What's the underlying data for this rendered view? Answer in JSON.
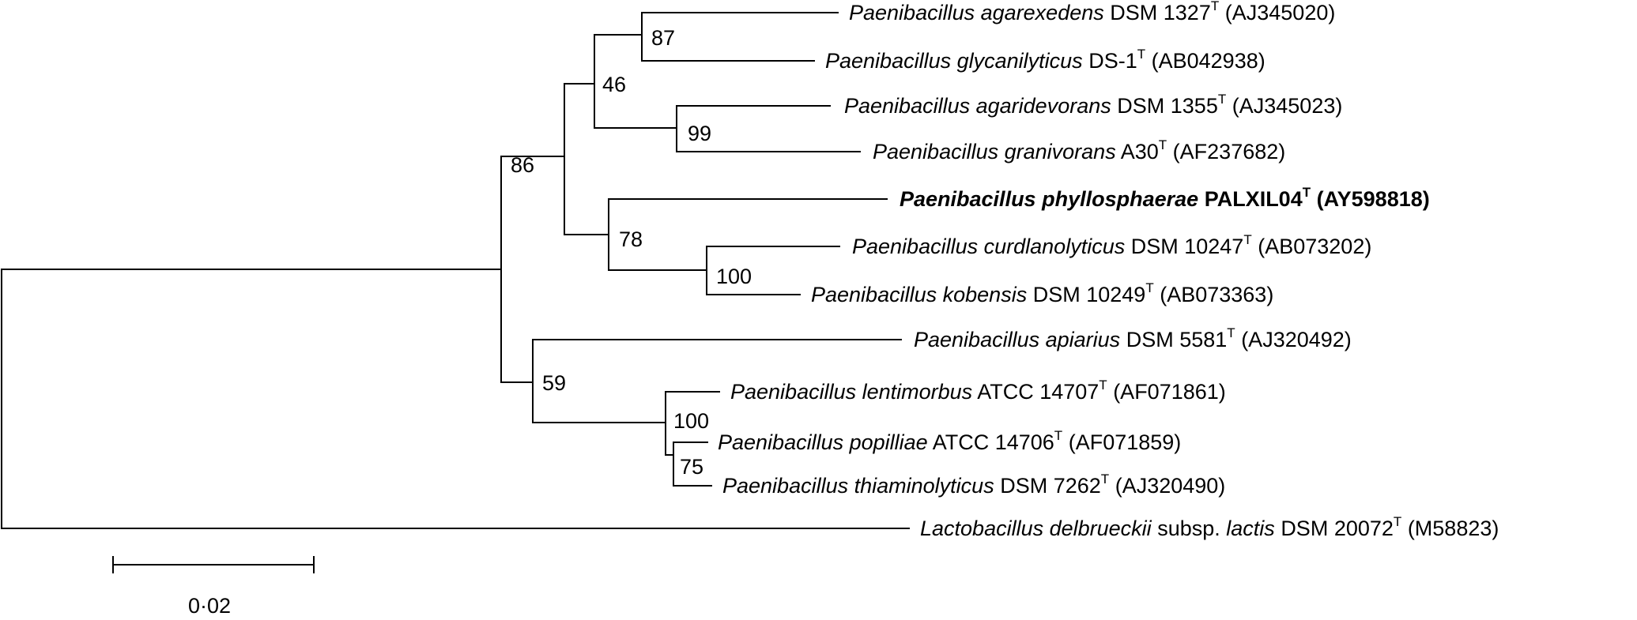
{
  "taxa": [
    {
      "genus": "Paenibacillus",
      "species": "agarexedens",
      "strain": "DSM 1327",
      "sup": "T",
      "accession": "(AJ345020)",
      "bold": false
    },
    {
      "genus": "Paenibacillus",
      "species": "glycanilyticus",
      "strain": "DS-1",
      "sup": "T",
      "accession": "(AB042938)",
      "bold": false
    },
    {
      "genus": "Paenibacillus",
      "species": "agaridevorans",
      "strain": "DSM 1355",
      "sup": "T",
      "accession": "(AJ345023)",
      "bold": false
    },
    {
      "genus": "Paenibacillus",
      "species": "granivorans",
      "strain": "A30",
      "sup": "T",
      "accession": "(AF237682)",
      "bold": false
    },
    {
      "genus": "Paenibacillus",
      "species": "phyllosphaerae",
      "strain": "PALXIL04",
      "sup": "T",
      "accession": "(AY598818)",
      "bold": true
    },
    {
      "genus": "Paenibacillus",
      "species": "curdlanolyticus",
      "strain": "DSM 10247",
      "sup": "T",
      "accession": "(AB073202)",
      "bold": false
    },
    {
      "genus": "Paenibacillus",
      "species": "kobensis",
      "strain": "DSM 10249",
      "sup": "T",
      "accession": "(AB073363)",
      "bold": false
    },
    {
      "genus": "Paenibacillus",
      "species": "apiarius",
      "strain": "DSM 5581",
      "sup": "T",
      "accession": "(AJ320492)",
      "bold": false
    },
    {
      "genus": "Paenibacillus",
      "species": "lentimorbus",
      "strain": "ATCC 14707",
      "sup": "T",
      "accession": "(AF071861)",
      "bold": false
    },
    {
      "genus": "Paenibacillus",
      "species": "popilliae",
      "strain": "ATCC 14706",
      "sup": "T",
      "accession": "(AF071859)",
      "bold": false
    },
    {
      "genus": "Paenibacillus",
      "species": "thiaminolyticus",
      "strain": "DSM 7262",
      "sup": "T",
      "accession": "(AJ320490)",
      "bold": false
    },
    {
      "genus": "Lactobacillus",
      "species": "delbrueckii",
      "subsp_word": "subsp.",
      "subspecies": "lactis",
      "strain": "DSM 20072",
      "sup": "T",
      "accession": "(M58823)",
      "bold": false
    }
  ],
  "bootstrap": [
    "87",
    "46",
    "99",
    "86",
    "78",
    "100",
    "59",
    "100",
    "75"
  ],
  "scale_bar": {
    "label": "0·02"
  }
}
